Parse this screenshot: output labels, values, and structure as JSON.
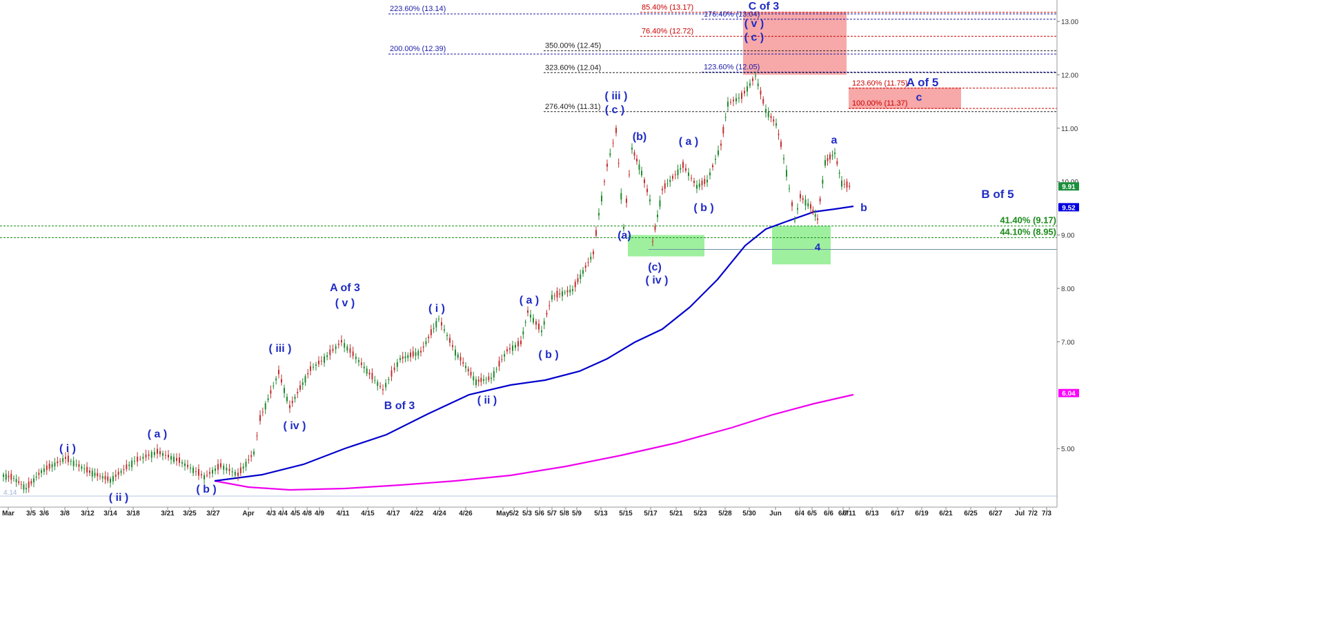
{
  "chart_data": {
    "type": "candlestick",
    "price_range": [
      4.14,
      13.35
    ],
    "x_tick_labels": [
      "Mar",
      "3/5",
      "3/6",
      "3/8",
      "3/12",
      "3/14",
      "3/18",
      "3/21",
      "3/25",
      "3/27",
      "Apr",
      "4/3",
      "4/4",
      "4/5",
      "4/8",
      "4/9",
      "4/11",
      "4/15",
      "4/17",
      "4/22",
      "4/24",
      "4/26",
      "May",
      "5/2",
      "5/3",
      "5/6",
      "5/7",
      "5/8",
      "5/9",
      "5/13",
      "5/15",
      "5/17",
      "5/21",
      "5/23",
      "5/28",
      "5/30",
      "Jun",
      "6/4",
      "6/5",
      "6/6",
      "6/7",
      "6/11",
      "6/13",
      "6/17",
      "6/19",
      "6/21",
      "6/25",
      "6/27",
      "Jul",
      "7/2",
      "7/3"
    ],
    "y_ticks": [
      {
        "value": 13.0,
        "label": "13.00"
      },
      {
        "value": 12.0,
        "label": "12.00"
      },
      {
        "value": 11.0,
        "label": "11.00"
      },
      {
        "value": 10.0,
        "label": "10.00"
      },
      {
        "value": 9.0,
        "label": "9.00"
      },
      {
        "value": 8.0,
        "label": "8.00"
      },
      {
        "value": 7.0,
        "label": "7.00"
      },
      {
        "value": 5.0,
        "label": "5.00"
      }
    ],
    "price_tags": [
      {
        "value": 9.91,
        "label": "9.91",
        "color": "#1a8f3c"
      },
      {
        "value": 9.52,
        "label": "9.52",
        "color": "#0000e0"
      },
      {
        "value": 6.04,
        "label": "6.04",
        "color": "#ff00ff"
      }
    ],
    "bottom_level_label": "4.14",
    "fib_lines": [
      {
        "label": "223.60% (13.14)",
        "value": 13.14,
        "color": "#1a1aa8"
      },
      {
        "label": "200.00% (12.39)",
        "value": 12.39,
        "color": "#1a1aa8"
      },
      {
        "label": "350.00% (12.45)",
        "value": 12.45,
        "color": "#222222"
      },
      {
        "label": "323.60% (12.04)",
        "value": 12.04,
        "color": "#222222"
      },
      {
        "label": "276.40% (11.31)",
        "value": 11.31,
        "color": "#222222"
      },
      {
        "label": "85.40% (13.17)",
        "value": 13.17,
        "color": "#cc0000"
      },
      {
        "label": "76.40% (12.72)",
        "value": 12.72,
        "color": "#cc0000"
      },
      {
        "label": "176.40% (13.04)",
        "value": 13.04,
        "color": "#1a1aa8"
      },
      {
        "label": "123.60% (12.05)",
        "value": 12.05,
        "color": "#1a1aa8"
      },
      {
        "label": "123.60% (11.75)",
        "value": 11.75,
        "color": "#cc0000"
      },
      {
        "label": "100.00% (11.37)",
        "value": 11.37,
        "color": "#cc0000"
      },
      {
        "label": "41.40% (9.17)",
        "value": 9.17,
        "color": "#1a8a1a"
      },
      {
        "label": "44.10% (8.95)",
        "value": 8.95,
        "color": "#1a8a1a"
      }
    ],
    "support_level": 8.73,
    "zones": [
      {
        "name": "red-zone-c-of-3",
        "color": "#f7a8a8",
        "price_top": 13.18,
        "price_bottom": 12.0
      },
      {
        "name": "red-zone-a-of-5",
        "color": "#f7a8a8",
        "price_top": 11.76,
        "price_bottom": 11.36
      },
      {
        "name": "green-zone-iv",
        "color": "#9ef09e",
        "price_top": 9.0,
        "price_bottom": 8.6
      },
      {
        "name": "green-zone-4",
        "color": "#9ef09e",
        "price_top": 9.17,
        "price_bottom": 8.45
      }
    ],
    "wave_labels": [
      "( i )",
      "( ii )",
      "( a )",
      "( b )",
      "( iii )",
      "( iv )",
      "A of 3",
      "( v )",
      "B of 3",
      "( i )",
      "( ii )",
      "( a )",
      "( b )",
      "( iii )",
      "( c )",
      "(b)",
      "(a)",
      "(c)",
      "( iv )",
      "( a )",
      "( b )",
      "C of 3",
      "( v )",
      "( c )",
      "4",
      "a",
      "b",
      "A of 5",
      "c",
      "B of 5"
    ],
    "moving_averages": [
      {
        "name": "MA-fast",
        "color": "#0000cc"
      },
      {
        "name": "MA-slow",
        "color": "#ee00ee"
      }
    ]
  }
}
